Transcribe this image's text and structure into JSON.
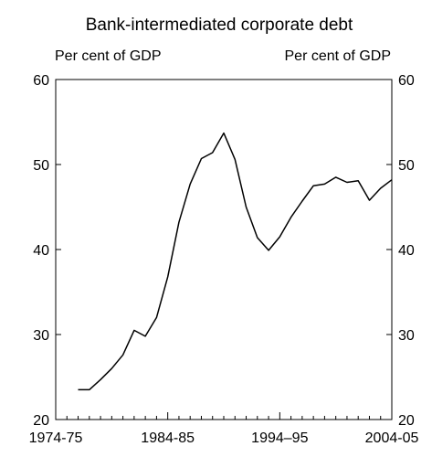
{
  "chart_data": {
    "type": "line",
    "title": "Bank-intermediated corporate debt",
    "ylabel_left": "Per cent of GDP",
    "ylabel_right": "Per cent of GDP",
    "ylim": [
      20,
      60
    ],
    "yticks": [
      20,
      30,
      40,
      50,
      60
    ],
    "x_tick_labels": [
      "1974-75",
      "1984-85",
      "1994–95",
      "2004-05"
    ],
    "x_tick_years": [
      1975,
      1985,
      1995,
      2005
    ],
    "xlim": [
      1975,
      2005
    ],
    "grid": false,
    "series": [
      {
        "x": [
          1977,
          1978,
          1979,
          1980,
          1981,
          1982,
          1983,
          1984,
          1985,
          1986,
          1987,
          1988,
          1989,
          1990,
          1991,
          1992,
          1993,
          1994,
          1995,
          1996,
          1997,
          1998,
          1999,
          2000,
          2001,
          2002,
          2003,
          2004,
          2005
        ],
        "values": [
          23.5,
          23.5,
          24.7,
          26.0,
          27.6,
          30.5,
          29.8,
          32.0,
          36.8,
          43.2,
          47.7,
          50.7,
          51.4,
          53.7,
          50.6,
          45.0,
          41.4,
          39.9,
          41.5,
          43.8,
          45.7,
          47.5,
          47.7,
          48.5,
          47.9,
          48.1,
          45.8,
          47.2,
          48.2
        ]
      }
    ]
  }
}
